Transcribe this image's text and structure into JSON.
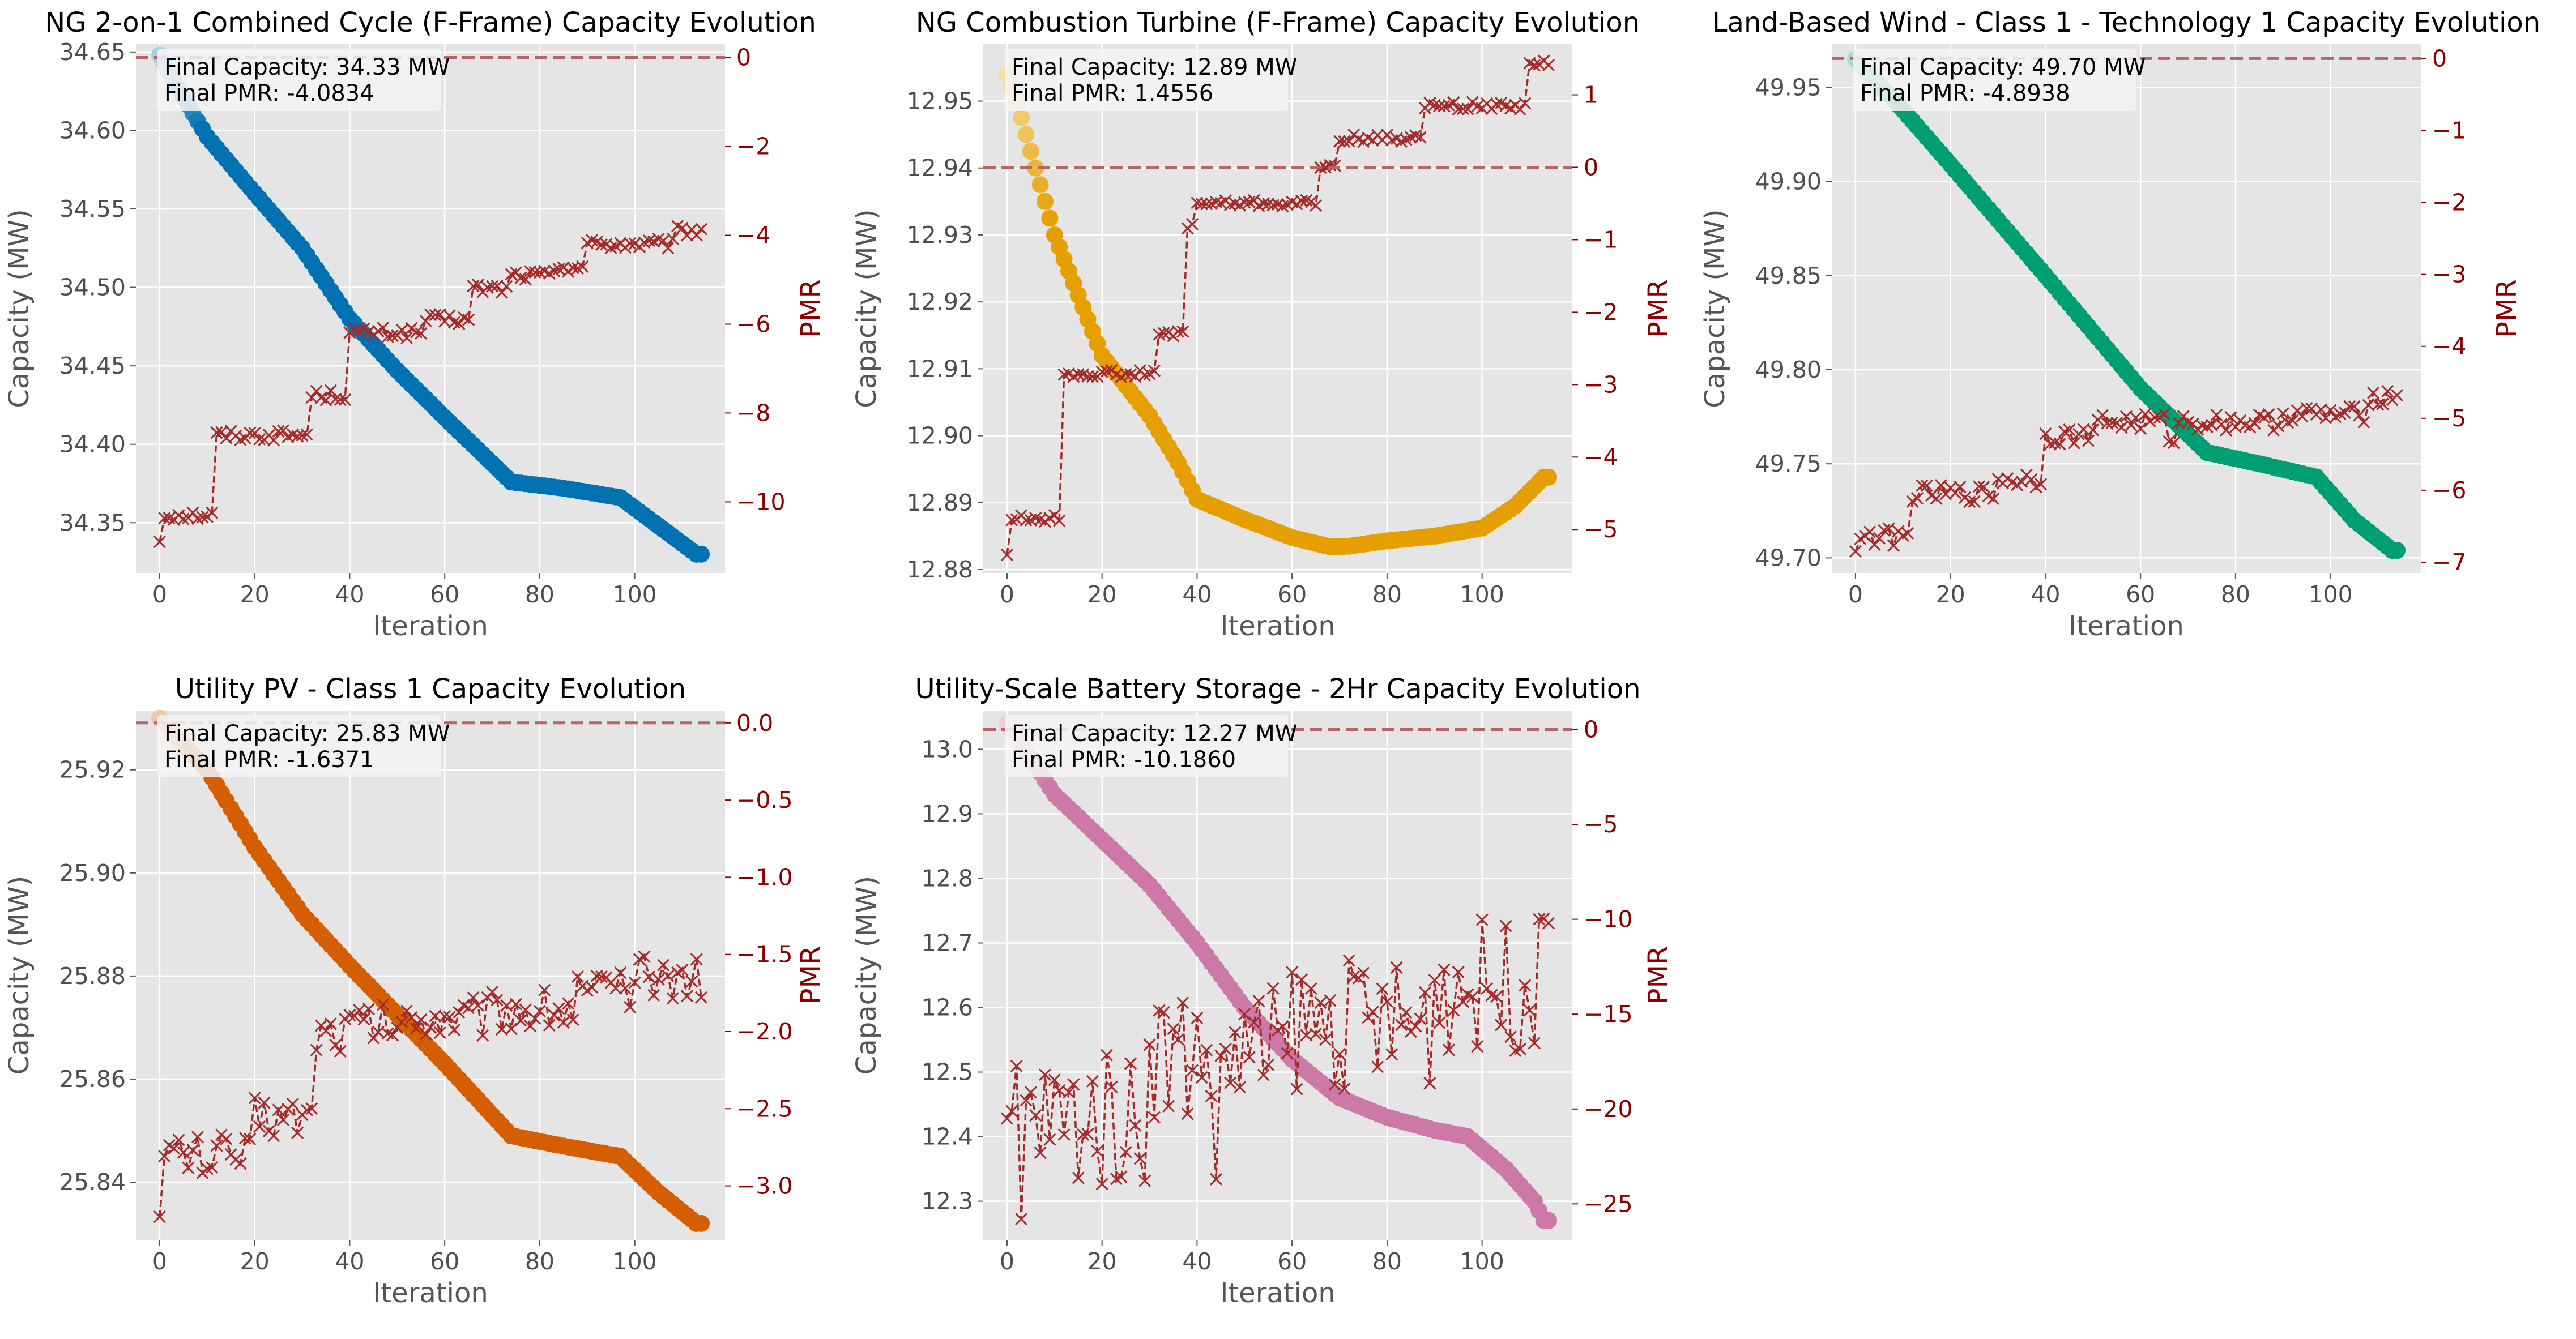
{
  "style": {
    "panel_bg": "#e5e5e5",
    "grid_color": "#ffffff",
    "pmr_color": "#a52a2a",
    "pmr_axis_color": "#8b0000",
    "zero_line_color": "#b56565"
  },
  "chart_data": [
    {
      "type": "line",
      "title": "NG 2-on-1 Combined Cycle (F-Frame) Capacity Evolution",
      "xlabel": "Iteration",
      "ylabel": "Capacity (MW)",
      "y2label": "PMR",
      "color": "#0072b2",
      "xlim": [
        -5,
        119
      ],
      "ylim": [
        34.318,
        34.655
      ],
      "y2lim": [
        -11.6,
        0.3
      ],
      "xticks": [
        0,
        20,
        40,
        60,
        80,
        100
      ],
      "yticks": [
        34.35,
        34.4,
        34.45,
        34.5,
        34.55,
        34.6,
        34.65
      ],
      "ytick_labels": [
        "34.35",
        "34.40",
        "34.45",
        "34.50",
        "34.55",
        "34.60",
        "34.65"
      ],
      "y2ticks": [
        0,
        -2,
        -4,
        -6,
        -8,
        -10
      ],
      "y2tick_labels": [
        "0",
        "−2",
        "−4",
        "−6",
        "−8",
        "−10"
      ],
      "capacity_knots": [
        [
          0,
          34.648
        ],
        [
          5,
          34.621
        ],
        [
          10,
          34.596
        ],
        [
          20,
          34.56
        ],
        [
          30,
          34.525
        ],
        [
          40,
          34.48
        ],
        [
          50,
          34.447
        ],
        [
          60,
          34.417
        ],
        [
          74,
          34.376
        ],
        [
          85,
          34.372
        ],
        [
          97,
          34.366
        ],
        [
          105,
          34.348
        ],
        [
          113,
          34.33
        ]
      ],
      "pmr_steps": [
        [
          0,
          -10.9
        ],
        [
          1,
          -10.3
        ],
        [
          12,
          -8.5
        ],
        [
          32,
          -7.6
        ],
        [
          40,
          -6.2
        ],
        [
          56,
          -5.9
        ],
        [
          66,
          -5.2
        ],
        [
          74,
          -4.9
        ],
        [
          84,
          -4.7
        ],
        [
          90,
          -4.2
        ],
        [
          109,
          -3.9
        ]
      ],
      "pmr_jitter": 0.12,
      "annotation": [
        "Final Capacity: 34.33 MW",
        "Final PMR: -4.0834"
      ]
    },
    {
      "type": "line",
      "title": "NG Combustion Turbine (F-Frame) Capacity Evolution",
      "xlabel": "Iteration",
      "ylabel": "Capacity (MW)",
      "y2label": "PMR",
      "color": "#e69f00",
      "xlim": [
        -5,
        119
      ],
      "ylim": [
        12.8795,
        12.9585
      ],
      "y2lim": [
        -5.6,
        1.7
      ],
      "xticks": [
        0,
        20,
        40,
        60,
        80,
        100
      ],
      "yticks": [
        12.88,
        12.89,
        12.9,
        12.91,
        12.92,
        12.93,
        12.94,
        12.95
      ],
      "ytick_labels": [
        "12.88",
        "12.89",
        "12.90",
        "12.91",
        "12.92",
        "12.93",
        "12.94",
        "12.95"
      ],
      "y2ticks": [
        1,
        0,
        -1,
        -2,
        -3,
        -4,
        -5
      ],
      "y2tick_labels": [
        "1",
        "0",
        "−1",
        "−2",
        "−3",
        "−4",
        "−5"
      ],
      "capacity_knots": [
        [
          0,
          12.954
        ],
        [
          2,
          12.95
        ],
        [
          6,
          12.94
        ],
        [
          10,
          12.93
        ],
        [
          15,
          12.921
        ],
        [
          20,
          12.912
        ],
        [
          30,
          12.903
        ],
        [
          36,
          12.896
        ],
        [
          40,
          12.8905
        ],
        [
          50,
          12.8875
        ],
        [
          60,
          12.8848
        ],
        [
          68,
          12.8834
        ],
        [
          72,
          12.8835
        ],
        [
          80,
          12.8843
        ],
        [
          90,
          12.885
        ],
        [
          100,
          12.8862
        ],
        [
          107,
          12.8895
        ],
        [
          113,
          12.8938
        ]
      ],
      "pmr_steps": [
        [
          0,
          -5.35
        ],
        [
          1,
          -4.85
        ],
        [
          12,
          -2.85
        ],
        [
          32,
          -2.3
        ],
        [
          38,
          -0.8
        ],
        [
          40,
          -0.5
        ],
        [
          66,
          0.0
        ],
        [
          70,
          0.4
        ],
        [
          88,
          0.85
        ],
        [
          110,
          1.45
        ]
      ],
      "pmr_jitter": 0.05,
      "annotation": [
        "Final Capacity: 12.89 MW",
        "Final PMR: 1.4556"
      ]
    },
    {
      "type": "line",
      "title": "Land-Based Wind - Class 1 - Technology 1 Capacity Evolution",
      "xlabel": "Iteration",
      "ylabel": "Capacity (MW)",
      "y2label": "PMR",
      "color": "#009e73",
      "xlim": [
        -5,
        119
      ],
      "ylim": [
        49.692,
        49.973
      ],
      "y2lim": [
        -7.15,
        0.2
      ],
      "xticks": [
        0,
        20,
        40,
        60,
        80,
        100
      ],
      "yticks": [
        49.7,
        49.75,
        49.8,
        49.85,
        49.9,
        49.95
      ],
      "ytick_labels": [
        "49.70",
        "49.75",
        "49.80",
        "49.85",
        "49.90",
        "49.95"
      ],
      "y2ticks": [
        0,
        -1,
        -2,
        -3,
        -4,
        -5,
        -6,
        -7
      ],
      "y2tick_labels": [
        "0",
        "−1",
        "−2",
        "−3",
        "−4",
        "−5",
        "−6",
        "−7"
      ],
      "capacity_knots": [
        [
          0,
          49.965
        ],
        [
          10,
          49.938
        ],
        [
          20,
          49.909
        ],
        [
          40,
          49.85
        ],
        [
          60,
          49.79
        ],
        [
          74,
          49.756
        ],
        [
          85,
          49.75
        ],
        [
          97,
          49.743
        ],
        [
          105,
          49.72
        ],
        [
          113,
          49.704
        ]
      ],
      "pmr_steps": [
        [
          0,
          -6.85
        ],
        [
          1,
          -6.65
        ],
        [
          12,
          -6.05
        ],
        [
          30,
          -5.85
        ],
        [
          40,
          -5.25
        ],
        [
          50,
          -5.05
        ],
        [
          66,
          -5.25
        ],
        [
          68,
          -5.05
        ],
        [
          90,
          -4.95
        ],
        [
          108,
          -4.7
        ]
      ],
      "pmr_jitter": 0.12,
      "annotation": [
        "Final Capacity: 49.70 MW",
        "Final PMR: -4.8938"
      ]
    },
    {
      "type": "line",
      "title": "Utility PV - Class 1 Capacity Evolution",
      "xlabel": "Iteration",
      "ylabel": "Capacity (MW)",
      "y2label": "PMR",
      "color": "#d55e00",
      "xlim": [
        -5,
        119
      ],
      "ylim": [
        25.8288,
        25.9315
      ],
      "y2lim": [
        -3.35,
        0.08
      ],
      "xticks": [
        0,
        20,
        40,
        60,
        80,
        100
      ],
      "yticks": [
        25.84,
        25.86,
        25.88,
        25.9,
        25.92
      ],
      "ytick_labels": [
        "25.84",
        "25.86",
        "25.88",
        "25.90",
        "25.92"
      ],
      "y2ticks": [
        0,
        -0.5,
        -1.0,
        -1.5,
        -2.0,
        -2.5,
        -3.0
      ],
      "y2tick_labels": [
        "0.0",
        "−0.5",
        "−1.0",
        "−1.5",
        "−2.0",
        "−2.5",
        "−3.0"
      ],
      "capacity_knots": [
        [
          0,
          25.93
        ],
        [
          10,
          25.92
        ],
        [
          20,
          25.905
        ],
        [
          30,
          25.892
        ],
        [
          40,
          25.882
        ],
        [
          60,
          25.863
        ],
        [
          74,
          25.849
        ],
        [
          85,
          25.847
        ],
        [
          97,
          25.845
        ],
        [
          105,
          25.838
        ],
        [
          113,
          25.832
        ]
      ],
      "pmr_steps": [
        [
          0,
          -3.2
        ],
        [
          1,
          -2.8
        ],
        [
          20,
          -2.55
        ],
        [
          33,
          -2.0
        ],
        [
          40,
          -1.95
        ],
        [
          55,
          -1.9
        ],
        [
          70,
          -1.85
        ],
        [
          88,
          -1.75
        ],
        [
          100,
          -1.65
        ]
      ],
      "pmr_jitter": 0.14,
      "annotation": [
        "Final Capacity: 25.83 MW",
        "Final PMR: -1.6371"
      ]
    },
    {
      "type": "line",
      "title": "Utility-Scale Battery Storage - 2Hr Capacity Evolution",
      "xlabel": "Iteration",
      "ylabel": "Capacity (MW)",
      "y2label": "PMR",
      "color": "#cc79a7",
      "xlim": [
        -5,
        119
      ],
      "ylim": [
        12.24,
        13.06
      ],
      "y2lim": [
        -26.9,
        1.0
      ],
      "xticks": [
        0,
        20,
        40,
        60,
        80,
        100
      ],
      "yticks": [
        12.3,
        12.4,
        12.5,
        12.6,
        12.7,
        12.8,
        12.9,
        13.0
      ],
      "ytick_labels": [
        "12.3",
        "12.4",
        "12.5",
        "12.6",
        "12.7",
        "12.8",
        "12.9",
        "13.0"
      ],
      "y2ticks": [
        0,
        -5,
        -10,
        -15,
        -20,
        -25
      ],
      "y2tick_labels": [
        "0",
        "−5",
        "−10",
        "−15",
        "−20",
        "−25"
      ],
      "capacity_knots": [
        [
          0,
          13.04
        ],
        [
          10,
          12.93
        ],
        [
          20,
          12.86
        ],
        [
          30,
          12.79
        ],
        [
          40,
          12.7
        ],
        [
          50,
          12.6
        ],
        [
          60,
          12.52
        ],
        [
          70,
          12.46
        ],
        [
          80,
          12.43
        ],
        [
          90,
          12.41
        ],
        [
          97,
          12.4
        ],
        [
          105,
          12.35
        ],
        [
          111,
          12.3
        ],
        [
          113,
          12.27
        ]
      ],
      "pmr_steps": [
        [
          0,
          -20.5
        ],
        [
          30,
          -17.0
        ],
        [
          60,
          -15.5
        ],
        [
          90,
          -13.5
        ],
        [
          113,
          -10.2
        ]
      ],
      "pmr_jitter": 3.5,
      "pmr_dips": [
        [
          3,
          -25.8
        ],
        [
          44,
          -23.7
        ]
      ],
      "annotation": [
        "Final Capacity: 12.27 MW",
        "Final PMR: -10.1860"
      ]
    }
  ]
}
